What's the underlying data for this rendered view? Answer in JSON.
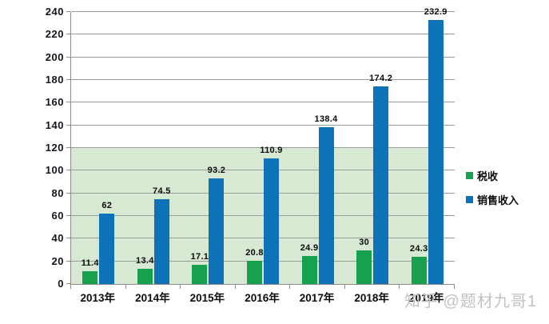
{
  "colors": {
    "tax_green": "#17a14e",
    "revenue_blue": "#0e72b8",
    "band_green": "#d7e9d3",
    "gridline_gray": "#9b9b9b",
    "axis_gray": "#8c8c8c",
    "label_black": "#0b0b0b",
    "axis_text": "#14141e",
    "watermark_gray": "#c3c3c3",
    "background": "#ffffff"
  },
  "chart_data": {
    "type": "bar",
    "categories": [
      "2013年",
      "2014年",
      "2015年",
      "2016年",
      "2017年",
      "2018年",
      "2019年"
    ],
    "series": [
      {
        "name": "税收",
        "color": "#17a14e",
        "values": [
          11.4,
          13.4,
          17.1,
          20.8,
          24.9,
          30,
          24.3
        ]
      },
      {
        "name": "销售收入",
        "color": "#0e72b8",
        "values": [
          62,
          74.5,
          93.2,
          110.9,
          138.4,
          174.2,
          232.9
        ]
      }
    ],
    "title": "",
    "xlabel": "",
    "ylabel": "",
    "ylim": [
      0,
      240
    ],
    "ytick_step": 20,
    "yticks": [
      0,
      20,
      40,
      60,
      80,
      100,
      120,
      140,
      160,
      180,
      200,
      220,
      240
    ],
    "grid": true,
    "data_labels": true,
    "legend_position": "right",
    "band": {
      "from": 0,
      "to": 120,
      "color": "#d7e9d3"
    }
  },
  "legend": {
    "items": [
      {
        "label": "税收",
        "color": "#17a14e"
      },
      {
        "label": "销售收入",
        "color": "#0e72b8"
      }
    ]
  },
  "watermark": {
    "text": "知乎 @题材九哥1"
  }
}
